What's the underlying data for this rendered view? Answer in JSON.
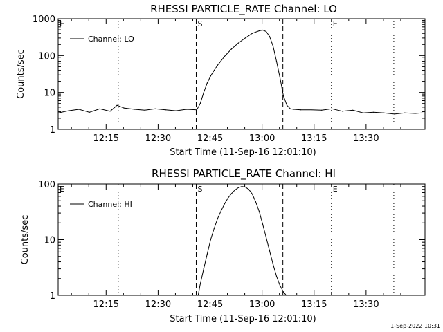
{
  "chart_data": [
    {
      "type": "line",
      "title": "RHESSI PARTICLE_RATE Channel: LO",
      "xlabel": "Start Time (11-Sep-16 12:01:10)",
      "ylabel": "Counts/sec",
      "yscale": "log",
      "xlim": [
        "12:01:10",
        "13:47:00"
      ],
      "ylim": [
        1,
        1000
      ],
      "x_ticks": [
        "12:15",
        "12:30",
        "12:45",
        "13:00",
        "13:15",
        "13:30"
      ],
      "y_ticks": [
        "1",
        "10",
        "100",
        "1000"
      ],
      "legend": "Channel: LO",
      "legend_position": "top-left",
      "markers": [
        {
          "label": "E",
          "time": "12:01:10",
          "style": "none"
        },
        {
          "label": "",
          "time": "12:18:30",
          "style": "dotted"
        },
        {
          "label": "S",
          "time": "12:41:00",
          "style": "dashed"
        },
        {
          "label": "",
          "time": "13:06:00",
          "style": "dashed"
        },
        {
          "label": "E",
          "time": "13:20:00",
          "style": "dotted"
        },
        {
          "label": "",
          "time": "13:38:00",
          "style": "dotted"
        }
      ],
      "series": [
        {
          "name": "Channel: LO",
          "x_minutes": [
            0,
            3,
            6,
            9,
            12,
            15,
            17,
            19,
            22,
            25,
            28,
            31,
            34,
            37,
            40,
            41,
            42,
            43,
            44,
            45,
            46,
            47,
            48,
            50,
            52,
            54,
            56,
            58,
            59,
            60,
            61,
            62,
            63,
            64,
            65,
            66,
            67,
            68,
            70,
            73,
            76,
            79,
            82,
            85,
            88,
            91,
            94,
            97,
            100,
            103,
            105
          ],
          "values": [
            2.8,
            3.2,
            3.5,
            2.9,
            3.6,
            3.1,
            4.5,
            3.8,
            3.5,
            3.3,
            3.6,
            3.4,
            3.2,
            3.5,
            3.4,
            5,
            10,
            18,
            28,
            40,
            55,
            72,
            95,
            150,
            220,
            300,
            400,
            470,
            490,
            450,
            330,
            180,
            70,
            25,
            8,
            4.5,
            3.6,
            3.5,
            3.4,
            3.4,
            3.3,
            3.6,
            3.1,
            3.3,
            2.8,
            2.9,
            2.8,
            2.6,
            2.8,
            2.7,
            2.8
          ]
        }
      ]
    },
    {
      "type": "line",
      "title": "RHESSI PARTICLE_RATE Channel: HI",
      "xlabel": "Start Time (11-Sep-16 12:01:10)",
      "ylabel": "Counts/sec",
      "yscale": "log",
      "xlim": [
        "12:01:10",
        "13:47:00"
      ],
      "ylim": [
        1,
        100
      ],
      "x_ticks": [
        "12:15",
        "12:30",
        "12:45",
        "13:00",
        "13:15",
        "13:30"
      ],
      "y_ticks": [
        "1",
        "10",
        "100"
      ],
      "legend": "Channel: HI",
      "legend_position": "top-left",
      "markers": [
        {
          "label": "E",
          "time": "12:01:10",
          "style": "none"
        },
        {
          "label": "",
          "time": "12:18:30",
          "style": "dotted"
        },
        {
          "label": "S",
          "time": "12:41:00",
          "style": "dashed"
        },
        {
          "label": "",
          "time": "13:06:00",
          "style": "dashed"
        },
        {
          "label": "E",
          "time": "13:20:00",
          "style": "dotted"
        },
        {
          "label": "",
          "time": "13:38:00",
          "style": "dotted"
        }
      ],
      "series": [
        {
          "name": "Channel: HI",
          "x_minutes": [
            40.4,
            41,
            42,
            43,
            44,
            45,
            46,
            47,
            48,
            49,
            50,
            51,
            52,
            53,
            54,
            55,
            56,
            57,
            58,
            59,
            60,
            61,
            62,
            63,
            64,
            65,
            65.8
          ],
          "values": [
            1,
            1.6,
            3,
            5.5,
            10,
            16,
            24,
            33,
            44,
            56,
            67,
            78,
            86,
            90,
            88,
            80,
            66,
            48,
            32,
            19,
            11,
            6.3,
            3.6,
            2.2,
            1.5,
            1.15,
            1
          ]
        }
      ]
    }
  ],
  "footer": {
    "timestamp": "1-Sep-2022 10:31"
  }
}
